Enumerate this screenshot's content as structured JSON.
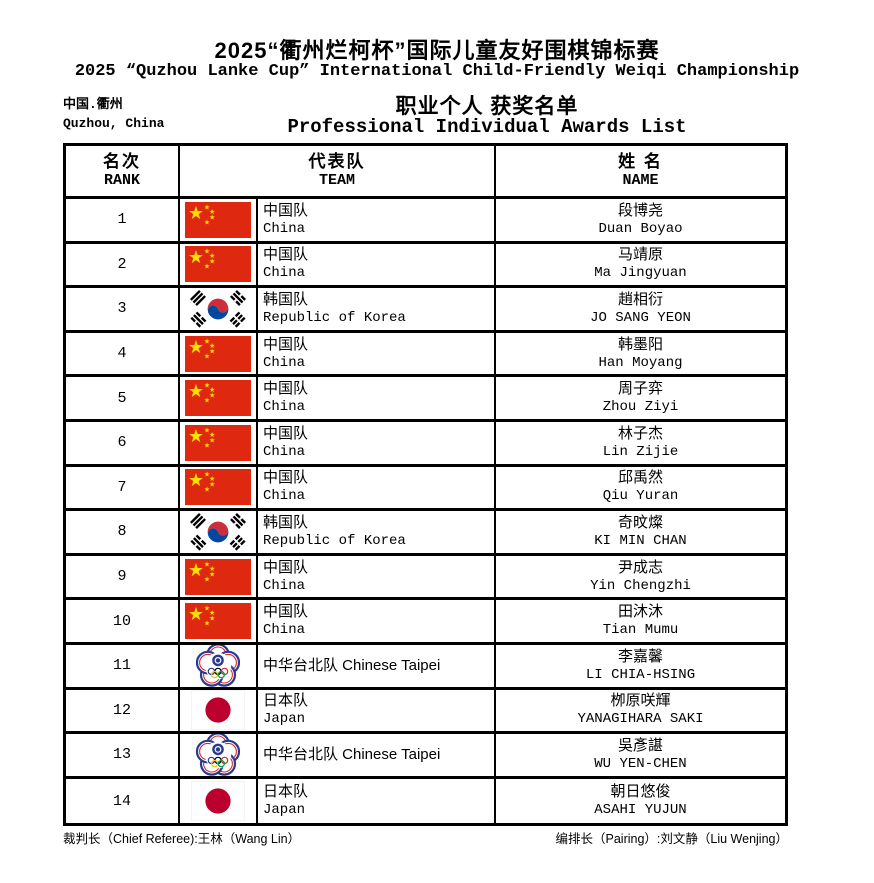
{
  "header": {
    "title_zh": "2025“衢州烂柯杯”国际儿童友好围棋锦标赛",
    "title_en": "2025 “Quzhou Lanke Cup” International Child-Friendly Weiqi Championship",
    "location_zh": "中国.衢州",
    "location_en": "Quzhou, China",
    "subtitle_zh": "职业个人 获奖名单",
    "subtitle_en": "Professional Individual Awards List"
  },
  "table": {
    "columns": [
      {
        "zh": "名次",
        "en": "RANK"
      },
      {
        "zh": "代表队",
        "en": "TEAM"
      },
      {
        "zh": "姓 名",
        "en": "NAME"
      }
    ],
    "rows": [
      {
        "rank": "1",
        "flag": "china",
        "team_zh": "中国队",
        "team_en": "China",
        "name_zh": "段博尧",
        "name_en": "Duan Boyao"
      },
      {
        "rank": "2",
        "flag": "china",
        "team_zh": "中国队",
        "team_en": "China",
        "name_zh": "马靖原",
        "name_en": "Ma Jingyuan"
      },
      {
        "rank": "3",
        "flag": "korea",
        "team_zh": "韩国队",
        "team_en": "Republic of Korea",
        "name_zh": "趙相衍",
        "name_en": "JO SANG YEON"
      },
      {
        "rank": "4",
        "flag": "china",
        "team_zh": "中国队",
        "team_en": "China",
        "name_zh": "韩墨阳",
        "name_en": "Han Moyang"
      },
      {
        "rank": "5",
        "flag": "china",
        "team_zh": "中国队",
        "team_en": "China",
        "name_zh": "周子弈",
        "name_en": "Zhou Ziyi"
      },
      {
        "rank": "6",
        "flag": "china",
        "team_zh": "中国队",
        "team_en": "China",
        "name_zh": "林子杰",
        "name_en": "Lin Zijie"
      },
      {
        "rank": "7",
        "flag": "china",
        "team_zh": "中国队",
        "team_en": "China",
        "name_zh": "邱禹然",
        "name_en": "Qiu Yuran"
      },
      {
        "rank": "8",
        "flag": "korea",
        "team_zh": "韩国队",
        "team_en": "Republic of Korea",
        "name_zh": "奇旼燦",
        "name_en": "KI MIN CHAN"
      },
      {
        "rank": "9",
        "flag": "china",
        "team_zh": "中国队",
        "team_en": "China",
        "name_zh": "尹成志",
        "name_en": "Yin Chengzhi"
      },
      {
        "rank": "10",
        "flag": "china",
        "team_zh": "中国队",
        "team_en": "China",
        "name_zh": "田沐沐",
        "name_en": "Tian Mumu"
      },
      {
        "rank": "11",
        "flag": "taipei",
        "team_zh": "中华台北队 Chinese Taipei",
        "team_en": "",
        "name_zh": "李嘉馨",
        "name_en": "LI CHIA-HSING"
      },
      {
        "rank": "12",
        "flag": "japan",
        "team_zh": "日本队",
        "team_en": "Japan",
        "name_zh": "栁原咲輝",
        "name_en": "YANAGIHARA SAKI"
      },
      {
        "rank": "13",
        "flag": "taipei",
        "team_zh": "中华台北队 Chinese Taipei",
        "team_en": "",
        "name_zh": "吳彥諶",
        "name_en": "WU YEN-CHEN"
      },
      {
        "rank": "14",
        "flag": "japan",
        "team_zh": "日本队",
        "team_en": "Japan",
        "name_zh": "朝日悠俊",
        "name_en": "ASAHI YUJUN"
      }
    ]
  },
  "footer": {
    "left": "裁判长（Chief Referee):王林（Wang Lin）",
    "right": "编排长（Pairing）:刘文静（Liu Wenjing）"
  },
  "colors": {
    "border": "#000000",
    "china_red": "#DE2910",
    "china_yellow": "#FFDE00",
    "korea_red": "#CD2E3A",
    "korea_blue": "#0047A0",
    "japan_red": "#BC002D",
    "taipei_blue": "#2B3990",
    "taipei_red": "#D7282F",
    "ring_yellow": "#F4C300",
    "ring_green": "#009F3D",
    "ring_black": "#000000"
  }
}
